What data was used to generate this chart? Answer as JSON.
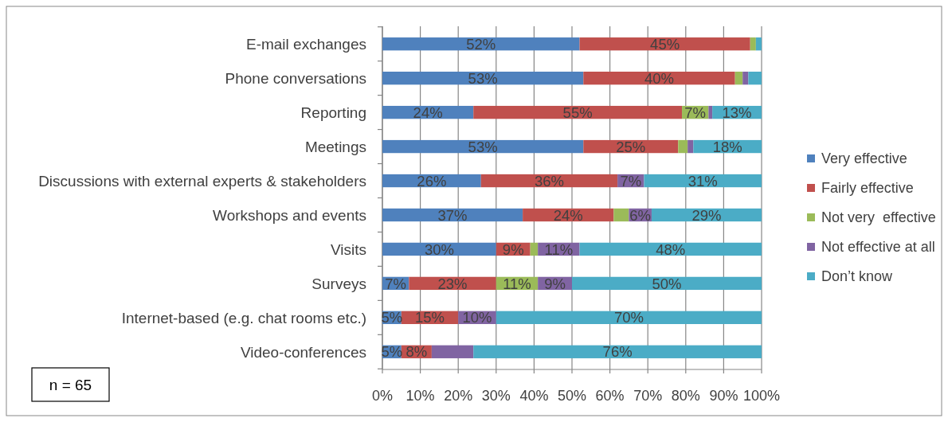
{
  "chart_data": {
    "type": "bar",
    "orientation": "horizontal",
    "stacked": true,
    "categories": [
      "E-mail exchanges",
      "Phone conversations",
      "Reporting",
      "Meetings",
      "Discussions with external experts & stakeholders",
      "Workshops and events",
      "Visits",
      "Surveys",
      "Internet-based (e.g. chat rooms etc.)",
      "Video-conferences"
    ],
    "series": [
      {
        "name": "Very effective",
        "color": "#4f81bd",
        "values": [
          52,
          53,
          24,
          53,
          26,
          37,
          30,
          7,
          5,
          5
        ],
        "value_labels": [
          "52%",
          "53%",
          "24%",
          "53%",
          "26%",
          "37%",
          "30%",
          "7%",
          "5%",
          "5%"
        ]
      },
      {
        "name": "Fairly effective",
        "color": "#c0504d",
        "values": [
          45,
          40,
          55,
          25,
          36,
          24,
          9,
          23,
          15,
          8
        ],
        "value_labels": [
          "45%",
          "40%",
          "55%",
          "25%",
          "36%",
          "24%",
          "9%",
          "23%",
          "15%",
          "8%"
        ]
      },
      {
        "name": "Not very  effective",
        "color": "#9bbb59",
        "values": [
          1.5,
          2,
          7,
          2.5,
          0,
          4,
          2,
          11,
          0,
          0
        ],
        "value_labels": [
          null,
          null,
          "7%",
          null,
          null,
          null,
          null,
          "11%",
          null,
          null
        ]
      },
      {
        "name": "Not effective at all",
        "color": "#8064a2",
        "values": [
          0,
          1.5,
          1,
          1.5,
          7,
          6,
          11,
          9,
          10,
          11
        ],
        "value_labels": [
          null,
          null,
          null,
          null,
          "7%",
          "6%",
          "11%",
          "9%",
          "10%",
          null
        ]
      },
      {
        "name": "Don’t know",
        "color": "#4bacc6",
        "values": [
          1.5,
          3.5,
          13,
          18,
          31,
          29,
          48,
          50,
          70,
          76
        ],
        "value_labels": [
          null,
          null,
          "13%",
          "18%",
          "31%",
          "29%",
          "48%",
          "50%",
          "70%",
          "76%"
        ]
      }
    ],
    "xlim": [
      0,
      100
    ],
    "xticks": [
      {
        "value": 0,
        "label": "0%"
      },
      {
        "value": 10,
        "label": "10%"
      },
      {
        "value": 20,
        "label": "20%"
      },
      {
        "value": 30,
        "label": "30%"
      },
      {
        "value": 40,
        "label": "40%"
      },
      {
        "value": 50,
        "label": "50%"
      },
      {
        "value": 60,
        "label": "60%"
      },
      {
        "value": 70,
        "label": "70%"
      },
      {
        "value": 80,
        "label": "80%"
      },
      {
        "value": 90,
        "label": "90%"
      },
      {
        "value": 100,
        "label": "100%"
      }
    ],
    "grid": "x",
    "legend": "right",
    "annotations": [
      "n = 65"
    ]
  }
}
